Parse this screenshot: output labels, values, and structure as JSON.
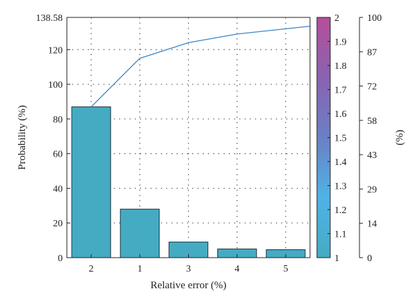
{
  "chart_data": {
    "type": "bar",
    "title": "",
    "xlabel": "Relative error (%)",
    "ylabel": "Probability (%)",
    "categories": [
      "2",
      "1",
      "3",
      "4",
      "5"
    ],
    "series": [
      {
        "type": "bar",
        "values": [
          87,
          28,
          9,
          5,
          4.6
        ],
        "color": "#45abc2"
      },
      {
        "type": "line",
        "values": [
          87,
          115,
          124,
          129,
          133.5
        ],
        "color": "#3a86c8"
      }
    ],
    "ylim": [
      0,
      138.58
    ],
    "yticks": [
      {
        "value": 0,
        "label": "0"
      },
      {
        "value": 20,
        "label": "20"
      },
      {
        "value": 40,
        "label": "40"
      },
      {
        "value": 60,
        "label": "60"
      },
      {
        "value": 80,
        "label": "80"
      },
      {
        "value": 100,
        "label": "100"
      },
      {
        "value": 120,
        "label": "120"
      },
      {
        "value": 138.58,
        "label": "138.58"
      }
    ],
    "right_axis": {
      "label": "(%)",
      "ylim": [
        0,
        100
      ],
      "ticks": [
        "0",
        "14",
        "29",
        "43",
        "58",
        "72",
        "87",
        "100"
      ]
    },
    "colorbar": {
      "range": [
        1,
        2
      ],
      "ticks": [
        "1",
        "1.1",
        "1.2",
        "1.3",
        "1.4",
        "1.5",
        "1.6",
        "1.7",
        "1.8",
        "1.9",
        "2"
      ],
      "colors": [
        "#45abc2",
        "#4fb3e6",
        "#6b7fc6",
        "#8a62b0",
        "#b64e9a"
      ]
    },
    "grid": true,
    "legend": "none"
  }
}
